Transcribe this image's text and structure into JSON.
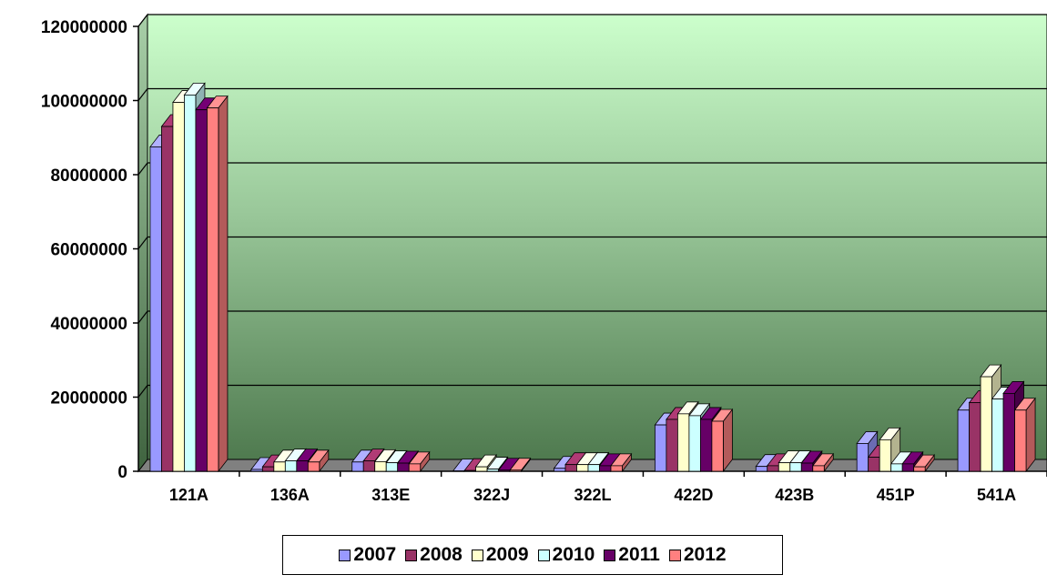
{
  "chart_data": {
    "type": "bar",
    "style": "3d-clustered-column",
    "categories": [
      "121A",
      "136A",
      "313E",
      "322J",
      "322L",
      "422D",
      "423B",
      "451P",
      "541A"
    ],
    "ylim": [
      0,
      120000000
    ],
    "yticks": [
      "0",
      "20000000",
      "40000000",
      "60000000",
      "80000000",
      "100000000",
      "120000000"
    ],
    "ytick_values": [
      0,
      20000000,
      40000000,
      60000000,
      80000000,
      100000000,
      120000000
    ],
    "grid": true,
    "legend_position": "bottom",
    "series": [
      {
        "name": "2007",
        "color": "#9999ff",
        "values": [
          87500000,
          500000,
          2500000,
          100000,
          800000,
          12500000,
          1300000,
          7500000,
          16500000
        ]
      },
      {
        "name": "2008",
        "color": "#993366",
        "values": [
          93000000,
          1200000,
          2800000,
          200000,
          1800000,
          14000000,
          1500000,
          3800000,
          18500000
        ]
      },
      {
        "name": "2009",
        "color": "#ffffcc",
        "values": [
          99500000,
          2500000,
          2600000,
          1200000,
          1800000,
          15500000,
          2300000,
          8500000,
          25500000
        ]
      },
      {
        "name": "2010",
        "color": "#ccffff",
        "values": [
          101500000,
          2800000,
          2300000,
          600000,
          1800000,
          15000000,
          2300000,
          2000000,
          19500000
        ]
      },
      {
        "name": "2011",
        "color": "#660066",
        "values": [
          97500000,
          2800000,
          2200000,
          300000,
          1500000,
          14000000,
          2200000,
          2000000,
          21000000
        ]
      },
      {
        "name": "2012",
        "color": "#ff8080",
        "values": [
          98000000,
          2500000,
          2000000,
          300000,
          1500000,
          13500000,
          1500000,
          1200000,
          16500000
        ]
      }
    ]
  }
}
